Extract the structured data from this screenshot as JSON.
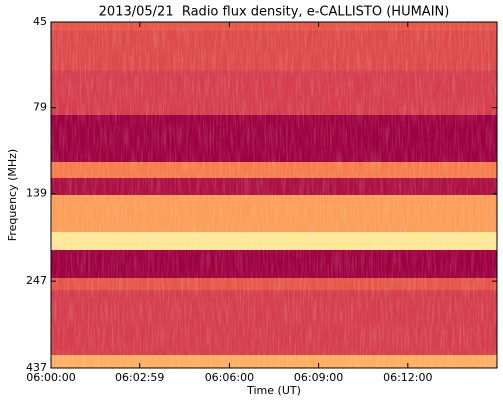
{
  "chart_data": {
    "type": "spectrogram",
    "title": "2013/05/21  Radio flux density, e-CALLISTO (HUMAIN)",
    "xlabel": "Time (UT)",
    "ylabel": "Frequency (MHz)",
    "xlim": [
      0,
      900
    ],
    "xticks": [
      {
        "value": 0,
        "label": "06:00:00"
      },
      {
        "value": 179,
        "label": "06:02:59"
      },
      {
        "value": 360,
        "label": "06:06:00"
      },
      {
        "value": 540,
        "label": "06:09:00"
      },
      {
        "value": 720,
        "label": "06:12:00"
      }
    ],
    "ylim": [
      45,
      437
    ],
    "yscale": "log",
    "y_inverted": true,
    "yticks": [
      45,
      79,
      139,
      247,
      437
    ],
    "colormap": [
      "#9e0142",
      "#d53e4f",
      "#f46d43",
      "#fdae61",
      "#fee08b",
      "#ffffbf"
    ],
    "bands": [
      {
        "from": 45,
        "to": 47.4,
        "level": 0.3
      },
      {
        "from": 47.4,
        "to": 61.7,
        "level": 0.25
      },
      {
        "from": 61.7,
        "to": 82.9,
        "level": 0.2
      },
      {
        "from": 82.9,
        "to": 112.9,
        "level": 0.0
      },
      {
        "from": 112.9,
        "to": 125.4,
        "level": 0.45
      },
      {
        "from": 125.4,
        "to": 140.3,
        "level": 0.05
      },
      {
        "from": 140.3,
        "to": 178.9,
        "level": 0.55
      },
      {
        "from": 178.9,
        "to": 201.3,
        "level": 0.85
      },
      {
        "from": 201.3,
        "to": 241.9,
        "level": 0.0
      },
      {
        "from": 241.9,
        "to": 261.8,
        "level": 0.3
      },
      {
        "from": 261.8,
        "to": 401.3,
        "level": 0.2
      },
      {
        "from": 401.3,
        "to": 437,
        "level": 0.6
      }
    ]
  }
}
